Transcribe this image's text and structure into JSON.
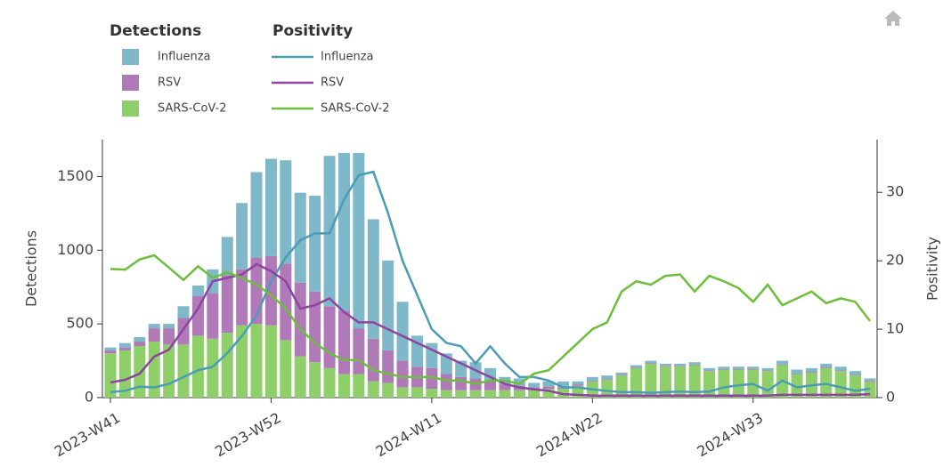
{
  "chart_data": {
    "type": "bar",
    "legend_titles": [
      "Detections",
      "Positivity"
    ],
    "ylabel": "Detections",
    "y2label": "Positivity",
    "categories": [
      "2023-W41",
      null,
      null,
      null,
      null,
      null,
      null,
      null,
      null,
      null,
      null,
      "2023-W52",
      null,
      null,
      null,
      null,
      null,
      null,
      null,
      null,
      null,
      null,
      "2024-W11",
      null,
      null,
      null,
      null,
      null,
      null,
      null,
      null,
      null,
      null,
      "2024-W22",
      null,
      null,
      null,
      null,
      null,
      null,
      null,
      null,
      null,
      null,
      "2024-W33",
      null,
      null,
      null,
      null,
      null,
      null,
      null,
      null
    ],
    "ylim": [
      0,
      1750
    ],
    "yticks": [
      0,
      500,
      1000,
      1500
    ],
    "y2lim": [
      0,
      37.7
    ],
    "y2ticks": [
      0,
      10,
      20,
      30
    ],
    "series": [
      {
        "name": "Influenza",
        "type": "bar",
        "color": "#7fb8c8",
        "values": [
          20,
          30,
          30,
          30,
          30,
          80,
          70,
          160,
          260,
          450,
          580,
          660,
          700,
          610,
          650,
          1020,
          1070,
          1190,
          810,
          610,
          400,
          210,
          170,
          140,
          110,
          110,
          90,
          50,
          50,
          30,
          35,
          40,
          20,
          25,
          25,
          15,
          15,
          15,
          15,
          15,
          15,
          15,
          15,
          15,
          15,
          15,
          25,
          25,
          25,
          25,
          25,
          25,
          15
        ]
      },
      {
        "name": "RSV",
        "type": "bar",
        "color": "#b07ab8",
        "values": [
          20,
          20,
          30,
          90,
          110,
          180,
          270,
          310,
          390,
          380,
          450,
          470,
          520,
          500,
          480,
          420,
          430,
          310,
          290,
          220,
          180,
          140,
          140,
          110,
          90,
          80,
          60,
          40,
          30,
          20,
          15,
          10,
          10,
          5,
          5,
          5,
          5,
          5,
          5,
          5,
          5,
          5,
          5,
          5,
          5,
          5,
          5,
          5,
          5,
          5,
          5,
          5,
          5
        ]
      },
      {
        "name": "SARS-CoV-2",
        "type": "bar",
        "color": "#8ecf6a",
        "values": [
          300,
          320,
          350,
          380,
          360,
          360,
          420,
          400,
          440,
          490,
          500,
          490,
          390,
          280,
          240,
          200,
          160,
          160,
          110,
          100,
          70,
          70,
          60,
          50,
          50,
          50,
          50,
          50,
          50,
          50,
          60,
          60,
          80,
          110,
          120,
          150,
          200,
          230,
          210,
          210,
          220,
          180,
          190,
          190,
          190,
          180,
          220,
          160,
          170,
          200,
          180,
          150,
          110
        ]
      },
      {
        "name": "Influenza",
        "type": "line",
        "axis": "y2",
        "color": "#4b9db5",
        "values": [
          0.8,
          1.0,
          1.6,
          1.5,
          2.0,
          3.0,
          4.0,
          4.5,
          6.5,
          9,
          12,
          17,
          20.5,
          23,
          24,
          24,
          29,
          32.5,
          33,
          27,
          20,
          15,
          10,
          8,
          7.5,
          5,
          7.5,
          5,
          3,
          3,
          2.5,
          1.5,
          1.5,
          1.2,
          1.0,
          0.8,
          0.8,
          0.7,
          0.8,
          0.9,
          0.8,
          0.9,
          1.5,
          1.8,
          2.0,
          1.0,
          2.5,
          1.5,
          1.8,
          2.0,
          1.5,
          1.0,
          1.3
        ]
      },
      {
        "name": "RSV",
        "type": "line",
        "axis": "y2",
        "color": "#8e44a0",
        "values": [
          2.2,
          2.6,
          3.5,
          6,
          7,
          10,
          13,
          17,
          17.5,
          18,
          19.5,
          18.5,
          17,
          13,
          13.5,
          14.5,
          12.5,
          11,
          11,
          10,
          9,
          8,
          7,
          6,
          5,
          4,
          3,
          2,
          1.5,
          1.2,
          1.0,
          0.5,
          0.4,
          0.3,
          0.3,
          0.3,
          0.3,
          0.3,
          0.3,
          0.3,
          0.3,
          0.3,
          0.3,
          0.3,
          0.3,
          0.3,
          0.4,
          0.4,
          0.4,
          0.4,
          0.4,
          0.4,
          0.5
        ]
      },
      {
        "name": "SARS-CoV-2",
        "type": "line",
        "axis": "y2",
        "color": "#6cbf3a",
        "values": [
          18.8,
          18.7,
          20.2,
          20.8,
          19,
          17.2,
          19.2,
          17.5,
          18.3,
          17.5,
          16.5,
          15,
          13,
          10,
          8,
          6.5,
          5.5,
          5.5,
          4,
          3.5,
          3,
          3,
          3,
          2.5,
          2.5,
          2,
          2.5,
          2.5,
          2,
          3.5,
          4,
          6,
          8,
          10,
          11,
          15.5,
          17,
          16.5,
          17.8,
          18,
          15.5,
          17.8,
          17,
          16,
          14,
          16.5,
          13.5,
          14.5,
          15.5,
          13.8,
          14.5,
          14,
          11.2
        ]
      }
    ]
  }
}
